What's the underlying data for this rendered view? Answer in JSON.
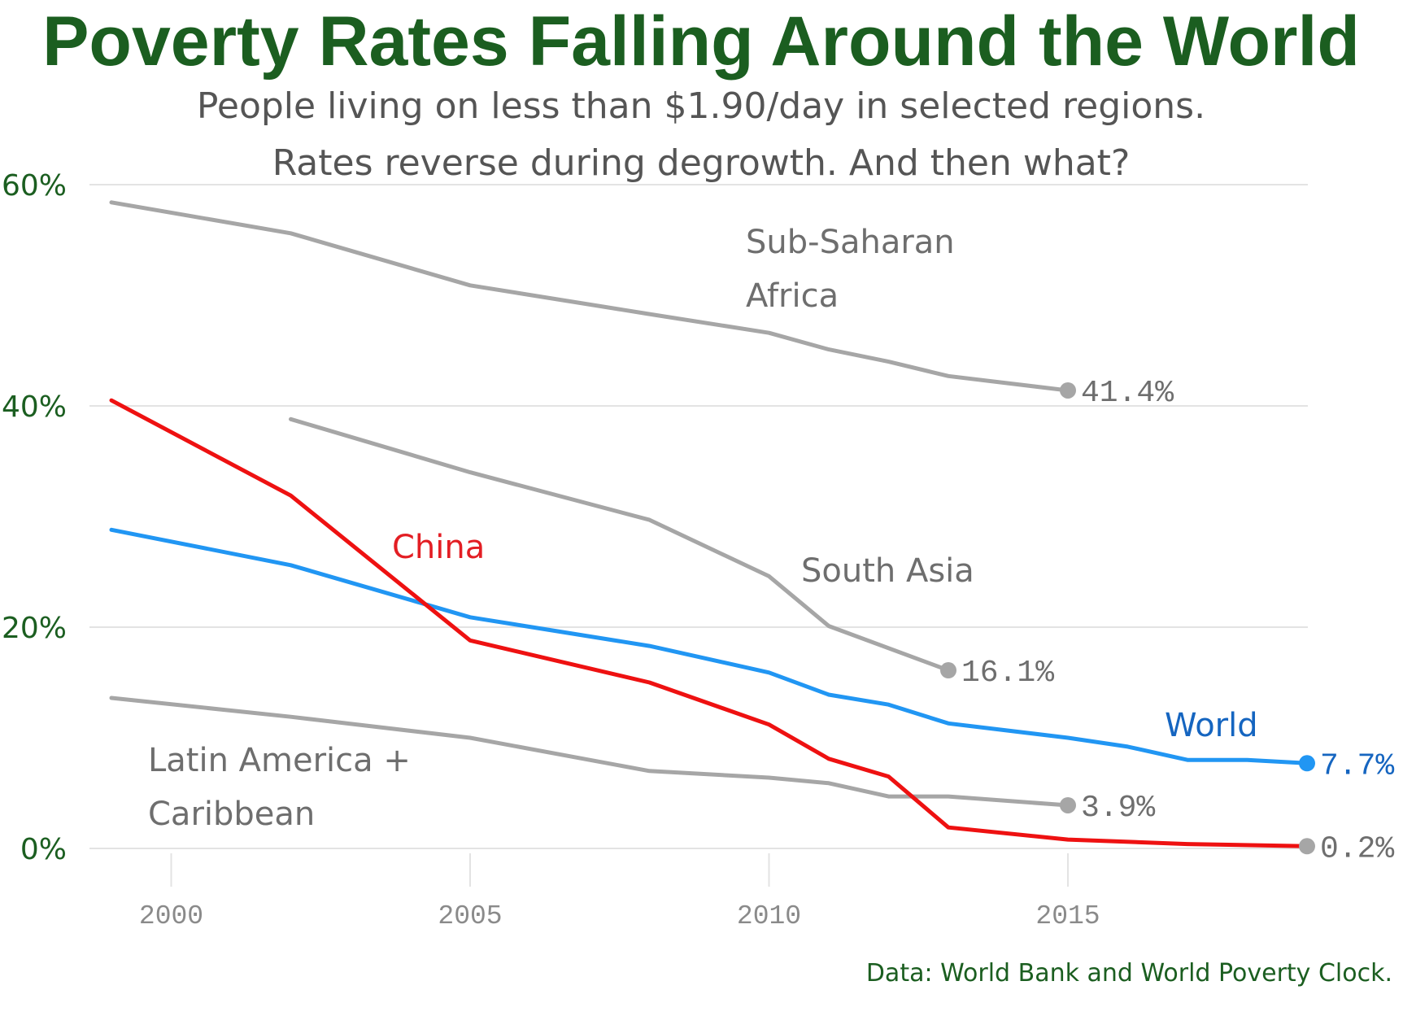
{
  "chart_data": {
    "type": "line",
    "title": "Poverty Rates Falling Around the World",
    "subtitle_lines": [
      "People living on less than $1.90/day in selected regions.",
      "Rates reverse during degrowth. And then what?"
    ],
    "source": "Data: World Bank and World Poverty Clock.",
    "xlim": [
      1999,
      2019
    ],
    "ylim": [
      0,
      60
    ],
    "x_ticks": [
      2000,
      2005,
      2010,
      2015
    ],
    "x_tick_labels": [
      "2000",
      "2005",
      "2010",
      "2015"
    ],
    "y_ticks": [
      0,
      20,
      40,
      60
    ],
    "y_tick_labels": [
      "0%",
      "20%",
      "40%",
      "60%"
    ],
    "grid": true,
    "legend": "none",
    "series": [
      {
        "id": "sub-saharan-africa",
        "name": "Sub-Saharan Africa",
        "label_lines": [
          "Sub-Saharan",
          "Africa"
        ],
        "color": "#a6a6a6",
        "label_color": "#6e6e6e",
        "end_label": "41.4%",
        "end_label_color": "#6e6e6e",
        "points": [
          [
            1999,
            58.4
          ],
          [
            2002,
            55.6
          ],
          [
            2005,
            50.9
          ],
          [
            2008,
            48.3
          ],
          [
            2010,
            46.6
          ],
          [
            2011,
            45.1
          ],
          [
            2012,
            44.0
          ],
          [
            2013,
            42.7
          ],
          [
            2015,
            41.4
          ]
        ]
      },
      {
        "id": "south-asia",
        "name": "South Asia",
        "label_lines": [
          "South Asia"
        ],
        "color": "#a6a6a6",
        "label_color": "#6e6e6e",
        "end_label": "16.1%",
        "end_label_color": "#6e6e6e",
        "points": [
          [
            2002,
            38.8
          ],
          [
            2005,
            34.0
          ],
          [
            2008,
            29.7
          ],
          [
            2010,
            24.6
          ],
          [
            2011,
            20.1
          ],
          [
            2013,
            16.1
          ]
        ]
      },
      {
        "id": "latin-america-caribbean",
        "name": "Latin America + Caribbean",
        "label_lines": [
          "Latin America +",
          "Caribbean"
        ],
        "color": "#a6a6a6",
        "label_color": "#6e6e6e",
        "end_label": "3.9%",
        "end_label_color": "#6e6e6e",
        "points": [
          [
            1999,
            13.6
          ],
          [
            2002,
            11.9
          ],
          [
            2005,
            10.0
          ],
          [
            2008,
            7.0
          ],
          [
            2010,
            6.4
          ],
          [
            2011,
            5.9
          ],
          [
            2012,
            4.7
          ],
          [
            2013,
            4.7
          ],
          [
            2015,
            3.9
          ]
        ]
      },
      {
        "id": "world",
        "name": "World",
        "label_lines": [
          "World"
        ],
        "color": "#2196f3",
        "label_color": "#1565c0",
        "end_label": "7.7%",
        "end_label_color": "#1565c0",
        "points": [
          [
            1999,
            28.8
          ],
          [
            2002,
            25.6
          ],
          [
            2005,
            20.9
          ],
          [
            2008,
            18.3
          ],
          [
            2010,
            15.9
          ],
          [
            2011,
            13.9
          ],
          [
            2012,
            13.0
          ],
          [
            2013,
            11.3
          ],
          [
            2015,
            10.0
          ],
          [
            2016,
            9.2
          ],
          [
            2017,
            8.0
          ],
          [
            2018,
            8.0
          ],
          [
            2019,
            7.7
          ]
        ]
      },
      {
        "id": "china",
        "name": "China",
        "label_lines": [
          "China"
        ],
        "color": "#ee1111",
        "label_color": "#e31e24",
        "end_label": "0.2%",
        "end_label_color": "#6e6e6e",
        "points": [
          [
            1999,
            40.5
          ],
          [
            2002,
            31.9
          ],
          [
            2005,
            18.8
          ],
          [
            2008,
            15.0
          ],
          [
            2010,
            11.2
          ],
          [
            2011,
            8.1
          ],
          [
            2012,
            6.5
          ],
          [
            2013,
            1.9
          ],
          [
            2015,
            0.8
          ],
          [
            2017,
            0.4
          ],
          [
            2019,
            0.2
          ]
        ]
      }
    ]
  }
}
